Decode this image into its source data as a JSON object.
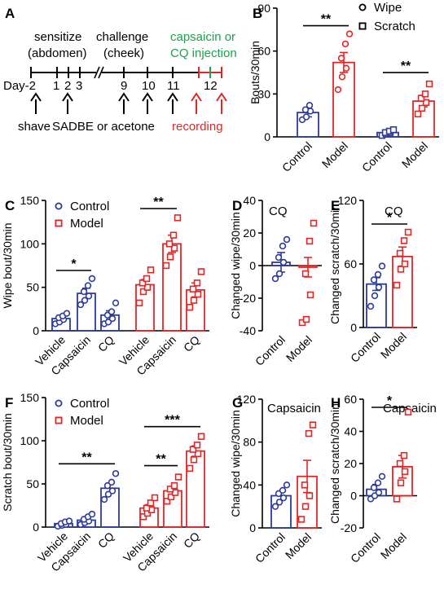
{
  "colors": {
    "control": "#2c3b9c",
    "model": "#e02626",
    "green": "#1aa34a",
    "black": "#000000"
  },
  "timeline": {
    "panel": "A",
    "sensitize": "sensitize",
    "sensitize_site": "(abdomen)",
    "challenge": "challenge",
    "challenge_site": "(cheek)",
    "inj_line1": "capsaicin or",
    "inj_line2": "CQ injection",
    "day_label": "Day-2",
    "days": [
      "1",
      "2",
      "3",
      "9",
      "10",
      "11",
      "12"
    ],
    "shave": "shave",
    "sadbe": "SADBE or acetone",
    "recording": "recording"
  },
  "chart_data": [
    {
      "panel": "B",
      "type": "bar",
      "ylabel": "Bouts/30min",
      "ylim": [
        0,
        90
      ],
      "yticks": [
        0,
        30,
        60,
        90
      ],
      "categories": [
        "Control",
        "Model",
        "Control",
        "Model"
      ],
      "groups": [
        {
          "name": "Wipe",
          "marker": "circle"
        },
        {
          "name": "Scratch",
          "marker": "square"
        }
      ],
      "values": [
        17,
        52,
        3,
        25
      ],
      "errors": [
        3,
        7,
        1,
        4
      ],
      "points": [
        [
          12,
          14,
          18,
          19,
          22
        ],
        [
          33,
          42,
          48,
          55,
          65,
          72
        ],
        [
          1,
          2,
          3,
          3,
          4,
          5
        ],
        [
          16,
          20,
          24,
          27,
          30,
          37
        ]
      ],
      "sig": [
        {
          "from": 0,
          "to": 1,
          "label": "**"
        },
        {
          "from": 2,
          "to": 3,
          "label": "**"
        }
      ],
      "legend": [
        {
          "marker": "circle",
          "label": "Wipe"
        },
        {
          "marker": "square",
          "label": "Scratch"
        }
      ]
    },
    {
      "panel": "C",
      "type": "bar",
      "ylabel": "Wipe bout/30min",
      "ylim": [
        0,
        150
      ],
      "yticks": [
        0,
        50,
        100,
        150
      ],
      "categories": [
        "Vehicle",
        "Capsaicin",
        "CQ",
        "Vehicle",
        "Capsaicin",
        "CQ"
      ],
      "values": [
        14,
        43,
        18,
        53,
        100,
        47
      ],
      "errors": [
        3,
        6,
        5,
        6,
        10,
        8
      ],
      "points": [
        [
          8,
          10,
          13,
          15,
          17,
          20
        ],
        [
          30,
          35,
          40,
          45,
          52,
          60
        ],
        [
          8,
          10,
          14,
          18,
          22,
          32
        ],
        [
          32,
          45,
          50,
          55,
          60,
          70
        ],
        [
          75,
          85,
          95,
          100,
          110,
          130
        ],
        [
          27,
          35,
          42,
          48,
          55,
          68
        ]
      ],
      "sig": [
        {
          "from": 0,
          "to": 1,
          "label": "*"
        },
        {
          "from": 3,
          "to": 4,
          "label": "**"
        }
      ],
      "legend": [
        {
          "marker": "circle",
          "label": "Control"
        },
        {
          "marker": "square",
          "label": "Model"
        }
      ]
    },
    {
      "panel": "D",
      "type": "bar",
      "title": "CQ",
      "ylabel": "Changed wipe/30min",
      "ylim": [
        -40,
        40
      ],
      "yticks": [
        -40,
        -20,
        0,
        20,
        40
      ],
      "categories": [
        "Control",
        "Model"
      ],
      "values": [
        2,
        -1
      ],
      "errors": [
        6,
        6
      ],
      "points": [
        [
          -8,
          -5,
          2,
          5,
          12,
          16
        ],
        [
          -35,
          -33,
          -18,
          -5,
          15,
          26
        ]
      ],
      "sig": []
    },
    {
      "panel": "E",
      "type": "bar",
      "title": "CQ",
      "ylabel": "Changed scratch/30min",
      "ylim": [
        0,
        120
      ],
      "yticks": [
        0,
        60,
        120
      ],
      "categories": [
        "Control",
        "Model"
      ],
      "values": [
        41,
        67
      ],
      "errors": [
        6,
        9
      ],
      "points": [
        [
          20,
          30,
          38,
          45,
          50,
          58
        ],
        [
          40,
          55,
          60,
          70,
          82,
          90
        ]
      ],
      "sig": [
        {
          "from": 0,
          "to": 1,
          "label": "*"
        }
      ]
    },
    {
      "panel": "F",
      "type": "bar",
      "ylabel": "Scratch bout/30min",
      "ylim": [
        0,
        150
      ],
      "yticks": [
        0,
        50,
        100,
        150
      ],
      "categories": [
        "Vehicle",
        "Capsaicin",
        "CQ",
        "Vehicle",
        "Capsaicin",
        "CQ"
      ],
      "values": [
        4,
        8,
        45,
        22,
        42,
        88
      ],
      "errors": [
        1,
        2,
        5,
        4,
        5,
        6
      ],
      "points": [
        [
          1,
          2,
          3,
          4,
          6,
          7
        ],
        [
          3,
          5,
          7,
          9,
          12,
          15
        ],
        [
          32,
          38,
          42,
          48,
          52,
          62
        ],
        [
          12,
          16,
          20,
          22,
          28,
          34
        ],
        [
          30,
          35,
          40,
          44,
          48,
          58
        ],
        [
          68,
          78,
          85,
          90,
          95,
          105
        ]
      ],
      "sig": [
        {
          "from": 0,
          "to": 2,
          "label": "**"
        },
        {
          "from": 3,
          "to": 4,
          "label": "**"
        },
        {
          "from": 3,
          "to": 5,
          "label": "***"
        }
      ],
      "legend": [
        {
          "marker": "circle",
          "label": "Control"
        },
        {
          "marker": "square",
          "label": "Model"
        }
      ]
    },
    {
      "panel": "G",
      "type": "bar",
      "title": "Capsaicin",
      "ylabel": "Changed wipe/30min",
      "ylim": [
        0,
        120
      ],
      "yticks": [
        0,
        40,
        80,
        120
      ],
      "categories": [
        "Control",
        "Model"
      ],
      "values": [
        30,
        48
      ],
      "errors": [
        4,
        15
      ],
      "points": [
        [
          20,
          24,
          28,
          32,
          35,
          40
        ],
        [
          8,
          20,
          30,
          40,
          88,
          96
        ]
      ],
      "sig": []
    },
    {
      "panel": "H",
      "type": "bar",
      "title": "Capsaicin",
      "ylabel": "Changed scratch/30min",
      "ylim": [
        -20,
        60
      ],
      "yticks": [
        -20,
        0,
        20,
        40,
        60
      ],
      "categories": [
        "Control",
        "Model"
      ],
      "values": [
        4,
        18
      ],
      "errors": [
        3,
        7
      ],
      "points": [
        [
          -2,
          0,
          2,
          5,
          8,
          12
        ],
        [
          -2,
          8,
          15,
          20,
          25,
          52
        ]
      ],
      "sig": [
        {
          "from": 0,
          "to": 1,
          "label": "*"
        }
      ]
    }
  ]
}
